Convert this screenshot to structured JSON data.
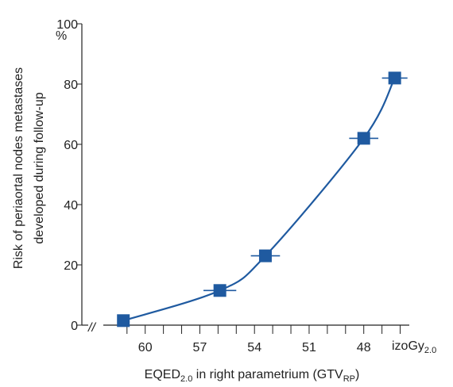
{
  "chart_data": {
    "type": "line",
    "title": "",
    "ylabel": "Risk of periaortal nodes metastases developed during follow-up",
    "ylabel_lines": [
      "Risk of periaortal nodes metastases",
      "developed during follow-up"
    ],
    "y_unit": "%",
    "xlabel": {
      "prefix": "EQED",
      "sub1": "2.0",
      "middle": " in right parametrium (GTV",
      "sub2": "RP",
      "suffix": ")"
    },
    "x_unit": {
      "base": "izoGy",
      "sub": "2.0"
    },
    "x_direction": "decreasing",
    "x_tick_labels": [
      "60",
      "57",
      "54",
      "51",
      "48"
    ],
    "y_tick_labels": [
      "0",
      "20",
      "40",
      "60",
      "80",
      "100"
    ],
    "ylim": [
      0,
      100
    ],
    "xlim": [
      62.3,
      45.5
    ],
    "axis_break_symbol": "//",
    "smooth_curve": true,
    "grid": false,
    "legend": "none",
    "series": [
      {
        "points": [
          {
            "x": 61.2,
            "y": 1.5
          },
          {
            "x": 55.9,
            "y": 11.5
          },
          {
            "x": 53.4,
            "y": 23
          },
          {
            "x": 48.0,
            "y": 62
          },
          {
            "x": 46.3,
            "y": 82
          }
        ],
        "x_error": [
          0,
          0.9,
          0.8,
          0.8,
          0.7
        ]
      }
    ],
    "colors": {
      "series": "#1f5aa0",
      "axis": "#222222"
    }
  }
}
